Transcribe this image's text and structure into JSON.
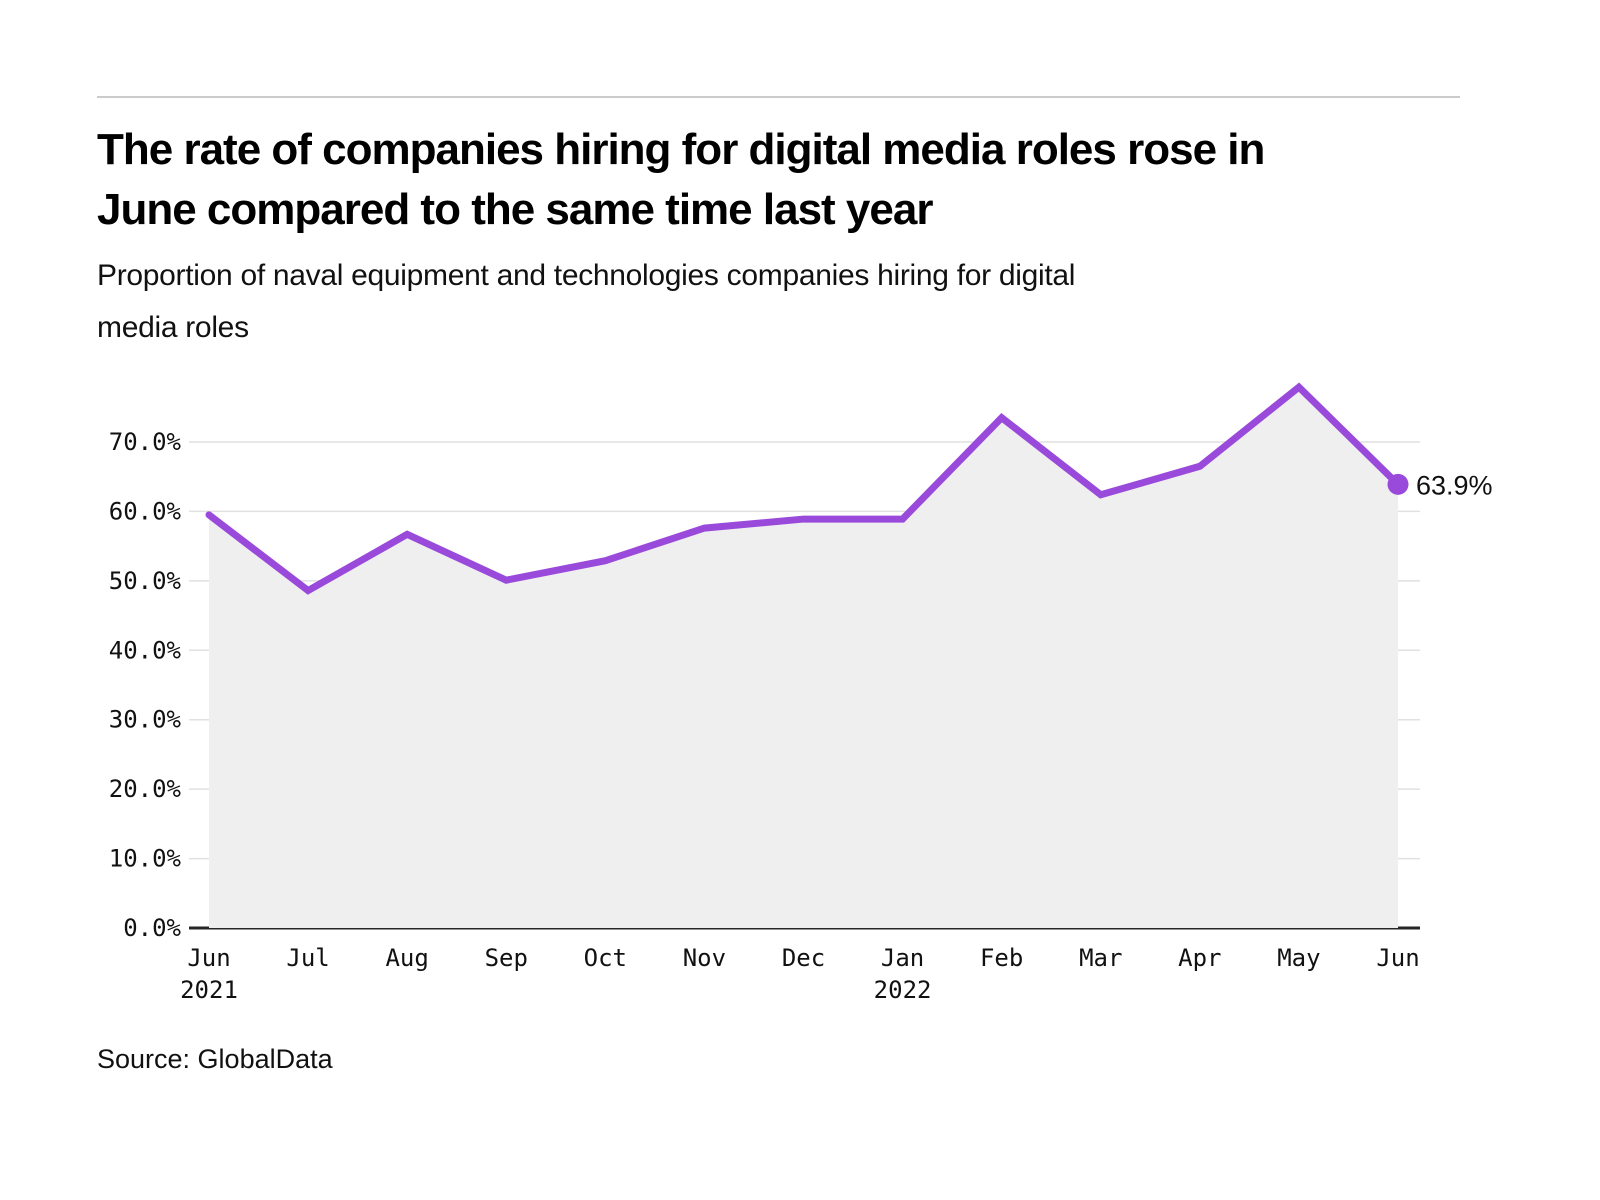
{
  "page": {
    "title_lines": [
      "The rate of companies hiring for digital media roles rose in",
      "June compared to the same time last year"
    ],
    "subtitle_lines": [
      "Proportion of naval equipment and technologies companies hiring for digital",
      "media roles"
    ],
    "source": "Source: GlobalData"
  },
  "chart_data": {
    "type": "area",
    "title": "The rate of companies hiring for digital media roles rose in June compared to the same time last year",
    "subtitle": "Proportion of naval equipment and technologies companies hiring for digital media roles",
    "source": "Source: GlobalData",
    "categories": [
      {
        "label": "Jun",
        "year": "2021"
      },
      {
        "label": "Jul"
      },
      {
        "label": "Aug"
      },
      {
        "label": "Sep"
      },
      {
        "label": "Oct"
      },
      {
        "label": "Nov"
      },
      {
        "label": "Dec"
      },
      {
        "label": "Jan",
        "year": "2022"
      },
      {
        "label": "Feb"
      },
      {
        "label": "Mar"
      },
      {
        "label": "Apr"
      },
      {
        "label": "May"
      },
      {
        "label": "Jun"
      }
    ],
    "values": [
      59.5,
      48.6,
      56.7,
      50.1,
      52.9,
      57.6,
      58.9,
      58.9,
      73.5,
      62.4,
      66.5,
      77.9,
      63.9
    ],
    "end_point_label": "63.9%",
    "ylim": [
      0,
      70
    ],
    "ytick_step": 10,
    "ytick_labels": [
      "0.0%",
      "10.0%",
      "20.0%",
      "30.0%",
      "40.0%",
      "50.0%",
      "60.0%",
      "70.0%"
    ],
    "grid": true,
    "legend": "none",
    "colors": {
      "line": "#9A4ADB",
      "area_fill": "#EFEFEF",
      "gridline": "#E1E1E1",
      "baseline": "#262626",
      "text": "#111111"
    }
  }
}
